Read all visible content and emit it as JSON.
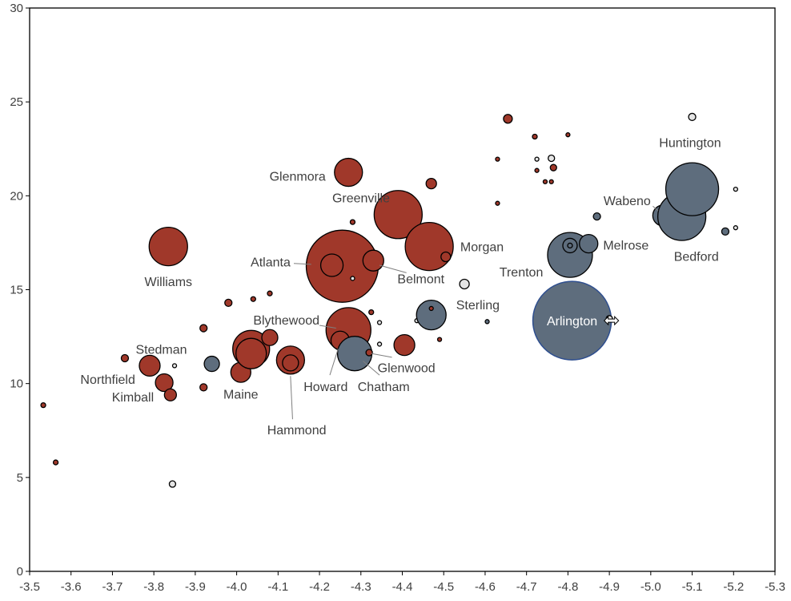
{
  "colors": {
    "red": "#a0382a",
    "slate": "#5e6d7d",
    "light": "#e4e4e4",
    "selected": "#5e6d7d",
    "selected_outline": "#2f4f8f",
    "label": "#404040",
    "leader": "#7f7f7f"
  },
  "chart_data": {
    "type": "scatter",
    "title": "",
    "xlabel": "",
    "ylabel": "",
    "xlim": [
      -3.5,
      -5.3
    ],
    "ylim": [
      0,
      30
    ],
    "x_reversed": true,
    "grid": false,
    "legend": "none",
    "xticks": [
      "-3.5",
      "-3.6",
      "-3.7",
      "-3.8",
      "-3.9",
      "-4.0",
      "-4.1",
      "-4.2",
      "-4.3",
      "-4.4",
      "-4.5",
      "-4.6",
      "-4.7",
      "-4.8",
      "-4.9",
      "-5.0",
      "-5.1",
      "-5.2",
      "-5.3"
    ],
    "yticks": [
      "0",
      "5",
      "10",
      "15",
      "20",
      "25",
      "30"
    ],
    "points": [
      {
        "x": -3.533,
        "y": 8.85,
        "r": 3,
        "color": "red",
        "label": ""
      },
      {
        "x": -3.563,
        "y": 5.8,
        "r": 3,
        "color": "red",
        "label": ""
      },
      {
        "x": -3.73,
        "y": 11.35,
        "r": 4.5,
        "color": "red",
        "label": "Northfield",
        "lx": -3.755,
        "ly": 10.25,
        "anchor": "end"
      },
      {
        "x": -3.79,
        "y": 10.95,
        "r": 13,
        "color": "red",
        "label": ""
      },
      {
        "x": -3.825,
        "y": 10.05,
        "r": 11,
        "color": "red",
        "label": ""
      },
      {
        "x": -3.84,
        "y": 9.4,
        "r": 7.5,
        "color": "red",
        "label": "Kimball",
        "lx": -3.8,
        "ly": 9.3,
        "anchor": "end"
      },
      {
        "x": -3.835,
        "y": 17.3,
        "r": 24,
        "color": "red",
        "label": "Williams",
        "lx": -3.835,
        "ly": 15.45,
        "anchor": "middle"
      },
      {
        "x": -3.845,
        "y": 4.65,
        "r": 4,
        "color": "light",
        "label": ""
      },
      {
        "x": -3.85,
        "y": 10.95,
        "r": 2.5,
        "color": "light",
        "label": ""
      },
      {
        "x": -3.92,
        "y": 12.95,
        "r": 4.5,
        "color": "red",
        "label": ""
      },
      {
        "x": -3.92,
        "y": 9.8,
        "r": 4.5,
        "color": "red",
        "label": ""
      },
      {
        "x": -3.94,
        "y": 11.05,
        "r": 9.5,
        "color": "slate",
        "label": "Stedman",
        "lx": -3.88,
        "ly": 11.85,
        "anchor": "end"
      },
      {
        "x": -3.98,
        "y": 14.3,
        "r": 4.5,
        "color": "red",
        "label": ""
      },
      {
        "x": -4.01,
        "y": 10.6,
        "r": 12.5,
        "color": "red",
        "label": "Maine",
        "lx": -4.01,
        "ly": 9.45,
        "anchor": "middle"
      },
      {
        "x": -4.02,
        "y": 11.0,
        "r": 2.5,
        "color": "light",
        "label": ""
      },
      {
        "x": -4.035,
        "y": 11.85,
        "r": 23,
        "color": "red",
        "label": ""
      },
      {
        "x": -4.035,
        "y": 11.6,
        "r": 19,
        "color": "red",
        "label": ""
      },
      {
        "x": -4.04,
        "y": 14.5,
        "r": 3,
        "color": "red",
        "label": ""
      },
      {
        "x": -4.08,
        "y": 14.8,
        "r": 3,
        "color": "red",
        "label": ""
      },
      {
        "x": -4.08,
        "y": 12.45,
        "r": 10,
        "color": "red",
        "label": ""
      },
      {
        "x": -4.13,
        "y": 11.25,
        "r": 17.5,
        "color": "red",
        "label": "Hammond",
        "lx": -4.145,
        "ly": 7.55,
        "anchor": "middle",
        "leader": [
          [
            -4.13,
            10.4
          ],
          [
            -4.135,
            8.1
          ]
        ]
      },
      {
        "x": -4.13,
        "y": 11.1,
        "r": 10,
        "color": "red",
        "label": ""
      },
      {
        "x": -4.255,
        "y": 16.25,
        "r": 45,
        "color": "red",
        "label": "Atlanta",
        "lx": -4.13,
        "ly": 16.5,
        "anchor": "end",
        "leader": [
          [
            -4.138,
            16.4
          ],
          [
            -4.18,
            16.35
          ]
        ]
      },
      {
        "x": -4.23,
        "y": 16.3,
        "r": 14,
        "color": "red",
        "label": ""
      },
      {
        "x": -4.27,
        "y": 21.25,
        "r": 17.5,
        "color": "red",
        "label": "Glenmora",
        "lx": -4.215,
        "ly": 21.05,
        "anchor": "end"
      },
      {
        "x": -4.28,
        "y": 18.6,
        "r": 3,
        "color": "red",
        "label": "Greenville",
        "lx": -4.37,
        "ly": 19.9,
        "anchor": "end"
      },
      {
        "x": -4.28,
        "y": 15.6,
        "r": 2.5,
        "color": "light",
        "label": ""
      },
      {
        "x": -4.27,
        "y": 12.85,
        "r": 28,
        "color": "red",
        "label": "Blythewood",
        "lx": -4.2,
        "ly": 13.4,
        "anchor": "end",
        "leader": [
          [
            -4.2,
            13.1
          ],
          [
            -4.24,
            12.95
          ]
        ]
      },
      {
        "x": -4.25,
        "y": 12.3,
        "r": 11.5,
        "color": "red",
        "label": "Howard",
        "lx": -4.215,
        "ly": 9.85,
        "anchor": "middle",
        "leader": [
          [
            -4.245,
            11.85
          ],
          [
            -4.225,
            10.45
          ]
        ]
      },
      {
        "x": -4.285,
        "y": 11.6,
        "r": 21.5,
        "color": "slate",
        "label": "Chatham",
        "lx": -4.355,
        "ly": 9.85,
        "anchor": "middle",
        "leader": [
          [
            -4.305,
            11.2
          ],
          [
            -4.345,
            10.45
          ]
        ]
      },
      {
        "x": -4.32,
        "y": 11.65,
        "r": 4,
        "color": "red",
        "label": "Glenwood",
        "lx": -4.41,
        "ly": 10.85,
        "anchor": "middle",
        "leader": [
          [
            -4.325,
            11.6
          ],
          [
            -4.375,
            11.4
          ]
        ]
      },
      {
        "x": -4.325,
        "y": 13.8,
        "r": 3,
        "color": "red",
        "label": ""
      },
      {
        "x": -4.33,
        "y": 16.55,
        "r": 13,
        "color": "red",
        "label": "Belmont",
        "lx": -4.445,
        "ly": 15.6,
        "anchor": "middle",
        "leader": [
          [
            -4.345,
            16.3
          ],
          [
            -4.41,
            15.9
          ]
        ]
      },
      {
        "x": -4.345,
        "y": 13.25,
        "r": 2.5,
        "color": "light",
        "label": ""
      },
      {
        "x": -4.345,
        "y": 12.1,
        "r": 2.5,
        "color": "light",
        "label": ""
      },
      {
        "x": -4.39,
        "y": 19.0,
        "r": 30,
        "color": "red",
        "label": ""
      },
      {
        "x": -4.405,
        "y": 12.05,
        "r": 13,
        "color": "red",
        "label": ""
      },
      {
        "x": -4.435,
        "y": 13.35,
        "r": 2.5,
        "color": "light",
        "label": ""
      },
      {
        "x": -4.465,
        "y": 17.3,
        "r": 30,
        "color": "red",
        "label": "Morgan",
        "lx": -4.54,
        "ly": 17.3,
        "anchor": "start"
      },
      {
        "x": -4.47,
        "y": 20.65,
        "r": 6.5,
        "color": "red",
        "label": ""
      },
      {
        "x": -4.47,
        "y": 13.65,
        "r": 18.5,
        "color": "slate",
        "label": "Sterling",
        "lx": -4.53,
        "ly": 14.2,
        "anchor": "start"
      },
      {
        "x": -4.47,
        "y": 14.0,
        "r": 2.5,
        "color": "red",
        "label": ""
      },
      {
        "x": -4.49,
        "y": 12.35,
        "r": 2.5,
        "color": "red",
        "label": ""
      },
      {
        "x": -4.505,
        "y": 16.75,
        "r": 6,
        "color": "red",
        "label": ""
      },
      {
        "x": -4.55,
        "y": 15.3,
        "r": 6,
        "color": "light",
        "label": ""
      },
      {
        "x": -4.605,
        "y": 13.3,
        "r": 2.5,
        "color": "slate",
        "label": ""
      },
      {
        "x": -4.63,
        "y": 21.95,
        "r": 2.5,
        "color": "red",
        "label": ""
      },
      {
        "x": -4.63,
        "y": 19.6,
        "r": 2.5,
        "color": "red",
        "label": ""
      },
      {
        "x": -4.655,
        "y": 24.1,
        "r": 5.5,
        "color": "red",
        "label": ""
      },
      {
        "x": -4.72,
        "y": 23.15,
        "r": 3,
        "color": "red",
        "label": ""
      },
      {
        "x": -4.725,
        "y": 21.95,
        "r": 2.5,
        "color": "light",
        "label": ""
      },
      {
        "x": -4.725,
        "y": 21.35,
        "r": 2.5,
        "color": "red",
        "label": ""
      },
      {
        "x": -4.745,
        "y": 20.75,
        "r": 2.5,
        "color": "red",
        "label": ""
      },
      {
        "x": -4.76,
        "y": 20.75,
        "r": 2.5,
        "color": "red",
        "label": ""
      },
      {
        "x": -4.76,
        "y": 22.0,
        "r": 4,
        "color": "light",
        "label": ""
      },
      {
        "x": -4.765,
        "y": 21.5,
        "r": 4,
        "color": "red",
        "label": ""
      },
      {
        "x": -4.8,
        "y": 23.25,
        "r": 2.5,
        "color": "red",
        "label": ""
      },
      {
        "x": -4.805,
        "y": 16.85,
        "r": 28,
        "color": "slate",
        "label": "Trenton",
        "lx": -4.74,
        "ly": 15.95,
        "anchor": "end"
      },
      {
        "x": -4.805,
        "y": 17.35,
        "r": 9,
        "color": "slate",
        "label": ""
      },
      {
        "x": -4.805,
        "y": 17.35,
        "r": 3,
        "color": "slate",
        "label": ""
      },
      {
        "x": -4.81,
        "y": 15.05,
        "r": 2.5,
        "color": "light",
        "label": ""
      },
      {
        "x": -4.85,
        "y": 17.45,
        "r": 11.5,
        "color": "slate",
        "label": "Melrose",
        "lx": -4.885,
        "ly": 17.4,
        "anchor": "start"
      },
      {
        "x": -4.87,
        "y": 18.9,
        "r": 4.5,
        "color": "slate",
        "label": ""
      },
      {
        "x": -4.81,
        "y": 13.35,
        "r": 49,
        "color": "selected",
        "label": "Arlington",
        "lx": -4.81,
        "ly": 13.35,
        "anchor": "middle",
        "inside": true,
        "selected": true
      },
      {
        "x": -4.9,
        "y": 13.45,
        "r": 4,
        "color": "light",
        "label": ""
      },
      {
        "x": -5.03,
        "y": 18.95,
        "r": 13,
        "color": "slate",
        "label": "Wabeno",
        "lx": -5.0,
        "ly": 19.75,
        "anchor": "end",
        "leader": [
          [
            -5.005,
            19.45
          ],
          [
            -5.018,
            19.2
          ]
        ]
      },
      {
        "x": -5.075,
        "y": 18.9,
        "r": 30,
        "color": "slate",
        "label": "Bedford",
        "lx": -5.11,
        "ly": 16.8,
        "anchor": "middle"
      },
      {
        "x": -5.1,
        "y": 20.35,
        "r": 33,
        "color": "slate",
        "label": "Huntington",
        "lx": -5.095,
        "ly": 22.85,
        "anchor": "middle"
      },
      {
        "x": -5.1,
        "y": 24.2,
        "r": 4.5,
        "color": "light",
        "label": ""
      },
      {
        "x": -5.18,
        "y": 18.1,
        "r": 4.5,
        "color": "slate",
        "label": ""
      },
      {
        "x": -5.205,
        "y": 18.3,
        "r": 2.5,
        "color": "light",
        "label": ""
      },
      {
        "x": -5.205,
        "y": 20.35,
        "r": 2.5,
        "color": "light",
        "label": ""
      }
    ]
  }
}
